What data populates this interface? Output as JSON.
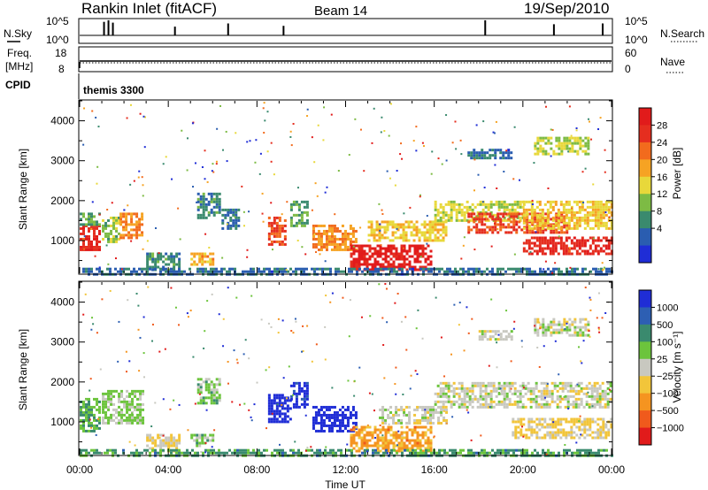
{
  "header": {
    "station": "Rankin Inlet (fitACF)",
    "beam": "Beam 14",
    "date": "19/Sep/2010"
  },
  "noise_panel": {
    "left_label": "N.Sky",
    "right_label": "N.Search",
    "ticks_left": [
      "10^5",
      "10^0"
    ],
    "ticks_right": [
      "10^5",
      "10^0"
    ],
    "spikes": [
      {
        "time": 1.1,
        "level": 0.85
      },
      {
        "time": 1.3,
        "level": 0.95
      },
      {
        "time": 1.5,
        "level": 0.8
      },
      {
        "time": 4.3,
        "level": 0.55
      },
      {
        "time": 6.7,
        "level": 0.75
      },
      {
        "time": 9.2,
        "level": 0.6
      },
      {
        "time": 18.3,
        "level": 0.95
      },
      {
        "time": 21.4,
        "level": 0.7
      },
      {
        "time": 23.6,
        "level": 0.75
      }
    ]
  },
  "freq_panel": {
    "left_label_top": "Freq.",
    "left_label_bottom": "[MHz]",
    "right_label": "Nave",
    "ticks_left": [
      "18",
      "8"
    ],
    "ticks_right": [
      "60",
      "0"
    ]
  },
  "cpid_panel": {
    "label": "CPID",
    "value": "themis 3300"
  },
  "x_axis": {
    "label": "Time UT",
    "range_hours": [
      0,
      24
    ],
    "ticks": [
      "00:00",
      "04:00",
      "08:00",
      "12:00",
      "16:00",
      "20:00",
      "00:00"
    ]
  },
  "y_axis": {
    "label": "Slant Range [km]",
    "range_km": [
      180,
      4500
    ],
    "ticks": [
      "1000",
      "2000",
      "3000",
      "4000"
    ]
  },
  "power_colorbar": {
    "label": "Power [dB]",
    "ticks": [
      "4",
      "8",
      "12",
      "16",
      "20",
      "24",
      "28"
    ],
    "colors": [
      "#1f2dd6",
      "#2a5db0",
      "#3a8a6e",
      "#7dbb44",
      "#e8d83a",
      "#f6a323",
      "#f26b1d",
      "#e52e1f",
      "#e11b1b"
    ]
  },
  "velocity_colorbar": {
    "label": "Velocity [m s⁻¹]",
    "ticks": [
      "1000",
      "500",
      "100",
      "25",
      "−25",
      "−100",
      "−500",
      "−1000"
    ],
    "colors": [
      "#1f2dd6",
      "#2d5fb3",
      "#3a8a6e",
      "#6cc43c",
      "#c8c8c0",
      "#f2c53a",
      "#f59420",
      "#f05a1c",
      "#e11b1b"
    ]
  },
  "chart_data": [
    {
      "type": "heatmap",
      "title": "",
      "xlabel": "Time UT",
      "ylabel": "Slant Range [km]",
      "colorbar_label": "Power [dB]",
      "xlim": [
        0,
        24
      ],
      "ylim": [
        180,
        4500
      ],
      "clim": [
        0,
        30
      ],
      "regions": [
        {
          "t0": 0.0,
          "t1": 0.9,
          "r0": 800,
          "r1": 1400,
          "value": 26
        },
        {
          "t0": 0.0,
          "t1": 0.9,
          "r0": 1400,
          "r1": 1700,
          "value": 10
        },
        {
          "t0": 1.0,
          "t1": 1.8,
          "r0": 1000,
          "r1": 1600,
          "value": 12
        },
        {
          "t0": 1.8,
          "t1": 2.8,
          "r0": 1100,
          "r1": 1700,
          "value": 20
        },
        {
          "t0": 3.0,
          "t1": 4.5,
          "r0": 300,
          "r1": 700,
          "value": 8
        },
        {
          "t0": 5.0,
          "t1": 6.0,
          "r0": 400,
          "r1": 700,
          "value": 18
        },
        {
          "t0": 5.3,
          "t1": 6.3,
          "r0": 1600,
          "r1": 2200,
          "value": 8
        },
        {
          "t0": 6.4,
          "t1": 7.2,
          "r0": 1300,
          "r1": 1800,
          "value": 6
        },
        {
          "t0": 8.5,
          "t1": 9.3,
          "r0": 900,
          "r1": 1600,
          "value": 24
        },
        {
          "t0": 9.5,
          "t1": 10.3,
          "r0": 1400,
          "r1": 2000,
          "value": 10
        },
        {
          "t0": 10.5,
          "t1": 12.5,
          "r0": 800,
          "r1": 1400,
          "value": 20
        },
        {
          "t0": 12.2,
          "t1": 15.8,
          "r0": 300,
          "r1": 900,
          "value": 28
        },
        {
          "t0": 13.0,
          "t1": 16.5,
          "r0": 1000,
          "r1": 1500,
          "value": 16
        },
        {
          "t0": 16.0,
          "t1": 20.0,
          "r0": 1500,
          "r1": 2000,
          "value": 14
        },
        {
          "t0": 17.5,
          "t1": 22.0,
          "r0": 1200,
          "r1": 1700,
          "value": 24
        },
        {
          "t0": 20.0,
          "t1": 24.0,
          "r0": 700,
          "r1": 1100,
          "value": 26
        },
        {
          "t0": 20.0,
          "t1": 24.0,
          "r0": 1300,
          "r1": 2000,
          "value": 16
        },
        {
          "t0": 17.5,
          "t1": 19.5,
          "r0": 3100,
          "r1": 3300,
          "value": 6
        },
        {
          "t0": 20.5,
          "t1": 23.0,
          "r0": 3200,
          "r1": 3600,
          "value": 14
        },
        {
          "t0": 0.0,
          "t1": 24.0,
          "r0": 180,
          "r1": 320,
          "value": 6
        }
      ]
    },
    {
      "type": "heatmap",
      "title": "",
      "xlabel": "Time UT",
      "ylabel": "Slant Range [km]",
      "colorbar_label": "Velocity [m s⁻¹]",
      "xlim": [
        0,
        24
      ],
      "ylim": [
        180,
        4500
      ],
      "clim": [
        -1000,
        1000
      ],
      "regions": [
        {
          "t0": 0.0,
          "t1": 0.9,
          "r0": 800,
          "r1": 1600,
          "value": 300
        },
        {
          "t0": 1.0,
          "t1": 2.8,
          "r0": 1000,
          "r1": 1800,
          "value": 150
        },
        {
          "t0": 3.0,
          "t1": 4.5,
          "r0": 300,
          "r1": 700,
          "value": -80
        },
        {
          "t0": 5.0,
          "t1": 6.0,
          "r0": 400,
          "r1": 700,
          "value": 200
        },
        {
          "t0": 5.3,
          "t1": 6.3,
          "r0": 1500,
          "r1": 2100,
          "value": 200
        },
        {
          "t0": 8.5,
          "t1": 9.5,
          "r0": 1000,
          "r1": 1700,
          "value": 1000
        },
        {
          "t0": 9.5,
          "t1": 10.3,
          "r0": 1400,
          "r1": 2000,
          "value": 900
        },
        {
          "t0": 10.5,
          "t1": 12.5,
          "r0": 800,
          "r1": 1400,
          "value": 1000
        },
        {
          "t0": 12.2,
          "t1": 15.8,
          "r0": 300,
          "r1": 900,
          "value": -400
        },
        {
          "t0": 13.5,
          "t1": 16.5,
          "r0": 1000,
          "r1": 1400,
          "value": 0
        },
        {
          "t0": 16.0,
          "t1": 24.0,
          "r0": 1400,
          "r1": 2000,
          "value": 0
        },
        {
          "t0": 19.5,
          "t1": 24.0,
          "r0": 600,
          "r1": 1100,
          "value": -150
        },
        {
          "t0": 18.0,
          "t1": 19.5,
          "r0": 3100,
          "r1": 3300,
          "value": 0
        },
        {
          "t0": 20.5,
          "t1": 23.0,
          "r0": 3200,
          "r1": 3600,
          "value": 0
        },
        {
          "t0": 0.0,
          "t1": 24.0,
          "r0": 180,
          "r1": 320,
          "value": 400
        }
      ]
    }
  ]
}
